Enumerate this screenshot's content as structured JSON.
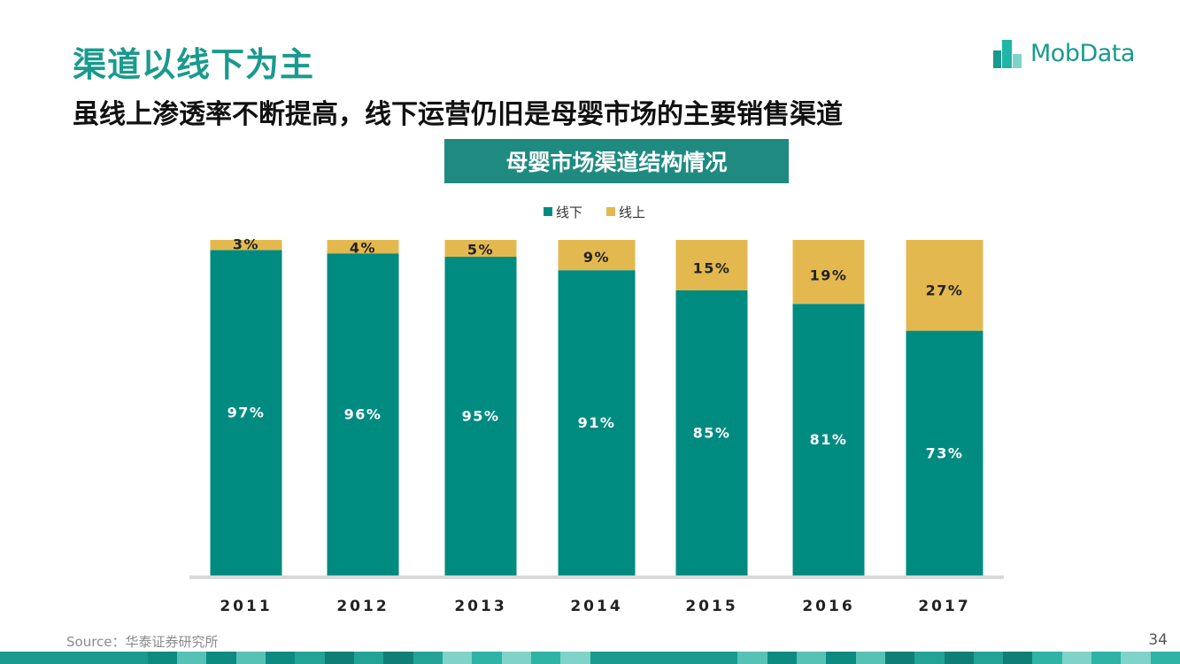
{
  "header": {
    "title": "渠道以线下为主",
    "subtitle": "虽线上渗透率不断提高，线下运营仍旧是母婴市场的主要销售渠道"
  },
  "logo": {
    "text": "MobData",
    "icon": "building-logo-icon"
  },
  "colors": {
    "offline": "#008b81",
    "online": "#e3b94f",
    "accent": "#1a9a8e",
    "axis": "#d9d9d9"
  },
  "chart_data": {
    "type": "bar",
    "stacked": true,
    "title": "母婴市场渠道结构情况",
    "categories": [
      "2011",
      "2012",
      "2013",
      "2014",
      "2015",
      "2016",
      "2017"
    ],
    "series": [
      {
        "name": "线下",
        "values": [
          97,
          96,
          95,
          91,
          85,
          81,
          73
        ],
        "labels": [
          "97%",
          "96%",
          "95%",
          "91%",
          "85%",
          "81%",
          "73%"
        ]
      },
      {
        "name": "线上",
        "values": [
          3,
          4,
          5,
          9,
          15,
          19,
          27
        ],
        "labels": [
          "3%",
          "4%",
          "5%",
          "9%",
          "15%",
          "19%",
          "27%"
        ]
      }
    ],
    "ylim": [
      0,
      100
    ],
    "legend_position": "top-center",
    "xlabel": "",
    "ylabel": "",
    "grid": false
  },
  "footer": {
    "source": "Source：华泰证券研究所",
    "page_number": "34"
  }
}
